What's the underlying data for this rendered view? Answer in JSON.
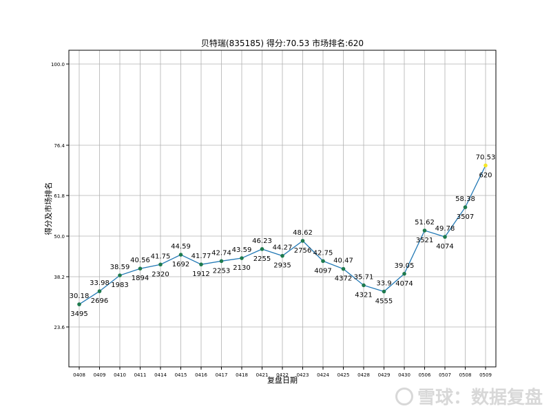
{
  "chart_data": {
    "type": "line",
    "title": "贝特瑞(835185) 得分:70.53  市场排名:620",
    "xlabel": "复盘日期",
    "ylabel": "得分及市场排名",
    "categories": [
      "0408",
      "0409",
      "0410",
      "0411",
      "0414",
      "0415",
      "0416",
      "0417",
      "0418",
      "0421",
      "0422",
      "0423",
      "0424",
      "0425",
      "0428",
      "0429",
      "0430",
      "0506",
      "0507",
      "0508",
      "0509"
    ],
    "series": [
      {
        "values": [
          30.18,
          33.98,
          38.59,
          40.56,
          41.75,
          44.59,
          41.77,
          42.74,
          43.59,
          46.23,
          44.27,
          48.62,
          42.75,
          40.47,
          35.71,
          33.9,
          39.05,
          51.62,
          49.78,
          58.38,
          70.53
        ],
        "ranks": [
          "3495",
          "2696",
          "1983",
          "1894",
          "2320",
          "1692",
          "1912",
          "2253",
          "2130",
          "2255",
          "2935",
          "2756",
          "4097",
          "4372",
          "4321",
          "4555",
          "4074",
          "3521",
          "4074",
          "3507",
          "620"
        ]
      }
    ],
    "yticks": [
      "23.6",
      "38.2",
      "50.0",
      "61.8",
      "76.4",
      "100.0"
    ],
    "ylim": [
      12,
      104
    ],
    "grid": true,
    "colors": {
      "line": "#1f77b4",
      "point": "#1e7a4e",
      "last_point": "#f5e626"
    }
  },
  "watermark": {
    "text": "雪球：数据复盘"
  }
}
